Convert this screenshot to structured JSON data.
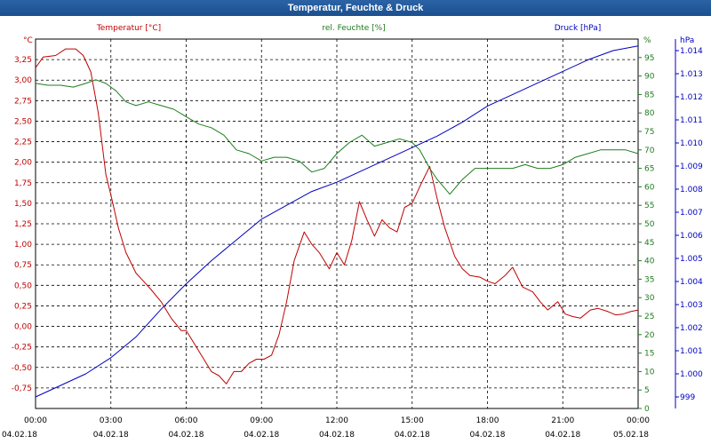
{
  "window": {
    "title": "Temperatur, Feuchte & Druck"
  },
  "chart_data": {
    "type": "line",
    "title": "Temperatur, Feuchte & Druck",
    "grid": true,
    "x_ticks": [
      {
        "t": 0,
        "time": "00:00",
        "date": "04.02.18"
      },
      {
        "t": 3,
        "time": "03:00",
        "date": "04.02.18"
      },
      {
        "t": 6,
        "time": "06:00",
        "date": "04.02.18"
      },
      {
        "t": 9,
        "time": "09:00",
        "date": "04.02.18"
      },
      {
        "t": 12,
        "time": "12:00",
        "date": "04.02.18"
      },
      {
        "t": 15,
        "time": "15:00",
        "date": "04.02.18"
      },
      {
        "t": 18,
        "time": "18:00",
        "date": "04.02.18"
      },
      {
        "t": 21,
        "time": "21:00",
        "date": "04.02.18"
      },
      {
        "t": 24,
        "time": "00:00",
        "date": "05.02.18"
      }
    ],
    "xlim": [
      0,
      24
    ],
    "axes": {
      "temperature": {
        "unit": "°C",
        "ylim": [
          -1.0,
          3.5
        ],
        "ticks": [
          "-0,75",
          "-0,50",
          "-0,25",
          "0,00",
          "0,25",
          "0,50",
          "0,75",
          "1,00",
          "1,25",
          "1,50",
          "1,75",
          "2,00",
          "2,25",
          "2,50",
          "2,75",
          "3,00",
          "3,25"
        ],
        "tick_values": [
          -0.75,
          -0.5,
          -0.25,
          0,
          0.25,
          0.5,
          0.75,
          1.0,
          1.25,
          1.5,
          1.75,
          2.0,
          2.25,
          2.5,
          2.75,
          3.0,
          3.25
        ]
      },
      "humidity": {
        "unit": "%",
        "ylim": [
          0,
          100
        ],
        "ticks": [
          "0",
          "5",
          "10",
          "15",
          "20",
          "25",
          "30",
          "35",
          "40",
          "45",
          "50",
          "55",
          "60",
          "65",
          "70",
          "75",
          "80",
          "85",
          "90",
          "95"
        ],
        "tick_values": [
          0,
          5,
          10,
          15,
          20,
          25,
          30,
          35,
          40,
          45,
          50,
          55,
          60,
          65,
          70,
          75,
          80,
          85,
          90,
          95
        ]
      },
      "pressure": {
        "unit": "hPa",
        "ylim": [
          998.5,
          1014.5
        ],
        "ticks": [
          "999",
          "1.000",
          "1.001",
          "1.002",
          "1.003",
          "1.004",
          "1.005",
          "1.006",
          "1.007",
          "1.008",
          "1.009",
          "1.010",
          "1.011",
          "1.012",
          "1.013",
          "1.014"
        ],
        "tick_values": [
          999,
          1000,
          1001,
          1002,
          1003,
          1004,
          1005,
          1006,
          1007,
          1008,
          1009,
          1010,
          1011,
          1012,
          1013,
          1014
        ]
      }
    },
    "series": [
      {
        "name": "Temperatur [°C]",
        "axis": "temperature",
        "color": "#c00000",
        "x": [
          0,
          0.3,
          0.8,
          1.2,
          1.6,
          1.9,
          2.2,
          2.5,
          2.8,
          3.0,
          3.3,
          3.6,
          4.0,
          4.3,
          4.6,
          5.0,
          5.4,
          5.8,
          6.0,
          6.3,
          6.7,
          7.0,
          7.3,
          7.6,
          7.9,
          8.2,
          8.5,
          8.8,
          9.1,
          9.4,
          9.7,
          10.0,
          10.3,
          10.7,
          11.0,
          11.3,
          11.7,
          12.0,
          12.3,
          12.6,
          12.9,
          13.2,
          13.5,
          13.8,
          14.1,
          14.4,
          14.7,
          15.0,
          15.3,
          15.7,
          16.0,
          16.3,
          16.7,
          17.0,
          17.3,
          17.7,
          18.0,
          18.3,
          18.7,
          19.0,
          19.4,
          19.8,
          20.1,
          20.4,
          20.8,
          21.1,
          21.4,
          21.7,
          22.1,
          22.4,
          22.8,
          23.1,
          23.4,
          23.7,
          24.0
        ],
        "values": [
          3.15,
          3.28,
          3.3,
          3.38,
          3.38,
          3.3,
          3.1,
          2.6,
          1.85,
          1.6,
          1.2,
          0.9,
          0.65,
          0.55,
          0.45,
          0.3,
          0.1,
          -0.05,
          -0.05,
          -0.2,
          -0.4,
          -0.55,
          -0.6,
          -0.7,
          -0.55,
          -0.55,
          -0.45,
          -0.4,
          -0.4,
          -0.35,
          -0.1,
          0.3,
          0.8,
          1.15,
          1.0,
          0.9,
          0.7,
          0.9,
          0.75,
          1.05,
          1.52,
          1.3,
          1.1,
          1.3,
          1.2,
          1.15,
          1.45,
          1.5,
          1.7,
          1.95,
          1.55,
          1.2,
          0.85,
          0.7,
          0.62,
          0.6,
          0.55,
          0.52,
          0.62,
          0.72,
          0.48,
          0.42,
          0.3,
          0.2,
          0.3,
          0.15,
          0.12,
          0.1,
          0.2,
          0.22,
          0.18,
          0.14,
          0.15,
          0.18,
          0.2
        ]
      },
      {
        "name": "rel. Feuchte [%]",
        "axis": "humidity",
        "color": "#1e7c1e",
        "x": [
          0,
          0.5,
          1.0,
          1.5,
          2.0,
          2.4,
          2.8,
          3.2,
          3.6,
          4.0,
          4.5,
          5.0,
          5.5,
          6.0,
          6.5,
          7.0,
          7.5,
          8.0,
          8.5,
          9.0,
          9.5,
          10.0,
          10.5,
          11.0,
          11.5,
          12.0,
          12.5,
          13.0,
          13.5,
          14.0,
          14.5,
          15.0,
          15.3,
          15.7,
          16.0,
          16.5,
          17.0,
          17.5,
          18.0,
          18.5,
          19.0,
          19.5,
          20.0,
          20.5,
          21.0,
          21.5,
          22.0,
          22.5,
          23.0,
          23.5,
          24.0
        ],
        "values": [
          88,
          87.5,
          87.5,
          87,
          88,
          89,
          88,
          86,
          83,
          82,
          83,
          82,
          81,
          79,
          77,
          76,
          74,
          70,
          69,
          67,
          68,
          68,
          67,
          64,
          65,
          69,
          72,
          74,
          71,
          72,
          73,
          72,
          70,
          65,
          62,
          58,
          62,
          65,
          65,
          65,
          65,
          66,
          65,
          65,
          66,
          68,
          69,
          70,
          70,
          70,
          69
        ]
      },
      {
        "name": "Druck [hPa]",
        "axis": "pressure",
        "color": "#0000c0",
        "x": [
          0,
          1,
          2,
          3,
          4,
          5,
          6,
          7,
          8,
          9,
          10,
          11,
          12,
          13,
          14,
          15,
          16,
          17,
          18,
          19,
          20,
          21,
          22,
          23,
          24
        ],
        "values": [
          999,
          999.5,
          1000,
          1000.7,
          1001.6,
          1002.8,
          1003.9,
          1004.9,
          1005.8,
          1006.7,
          1007.3,
          1007.9,
          1008.3,
          1008.8,
          1009.3,
          1009.8,
          1010.3,
          1010.9,
          1011.6,
          1012.1,
          1012.6,
          1013.1,
          1013.6,
          1014,
          1014.2
        ]
      }
    ]
  }
}
